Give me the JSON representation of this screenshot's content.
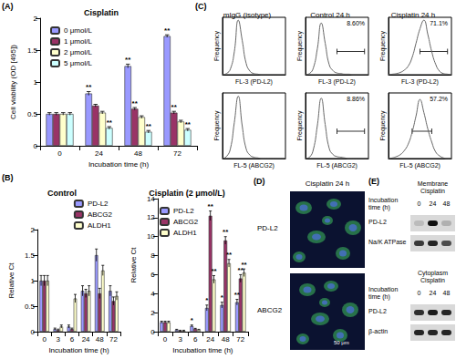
{
  "panel_labels": [
    "(A)",
    "(B)",
    "(C)",
    "(D)",
    "(E)"
  ],
  "chart_data": [
    {
      "type": "bar",
      "title": "Cisplatin",
      "x_label": "Incubation time (h)",
      "y_label": "Cell viability (OD [495])",
      "categories": [
        "0",
        "24",
        "48",
        "72"
      ],
      "ylim": [
        0,
        2
      ],
      "yticks": [
        0,
        0.5,
        1,
        1.5,
        2
      ],
      "grid": false,
      "legend": "top-left",
      "series": [
        {
          "name": "0 μmol/L",
          "color": "#9999ff",
          "values": [
            0.5,
            0.82,
            1.25,
            1.72
          ],
          "errors": [
            0.02,
            0.03,
            0.03,
            0.02
          ],
          "significance": [
            null,
            "**",
            "**",
            "**"
          ]
        },
        {
          "name": "1 μmol/L",
          "color": "#993366",
          "values": [
            0.5,
            0.63,
            0.58,
            0.52
          ],
          "errors": [
            0.02,
            0.02,
            0.02,
            0.02
          ],
          "significance": [
            null,
            null,
            "**",
            "**"
          ]
        },
        {
          "name": "2 μmol/L",
          "color": "#ffffcc",
          "values": [
            0.5,
            0.52,
            0.45,
            0.38
          ],
          "errors": [
            0.02,
            0.02,
            0.02,
            0.02
          ],
          "significance": [
            null,
            null,
            null,
            null
          ]
        },
        {
          "name": "5 μmol/L",
          "color": "#ccffff",
          "values": [
            0.5,
            0.28,
            0.22,
            0.25
          ],
          "errors": [
            0.02,
            0.02,
            0.02,
            0.02
          ],
          "significance": [
            null,
            "**",
            "**",
            "**"
          ]
        }
      ]
    },
    {
      "type": "bar",
      "title": "Control",
      "x_label": "Incubation time (h)",
      "y_label": "Relative Ct",
      "categories": [
        "0",
        "3",
        "6",
        "24",
        "48",
        "72"
      ],
      "ylim": [
        0,
        2
      ],
      "yticks": [
        0,
        0.5,
        1,
        1.5,
        2
      ],
      "grid": false,
      "legend": "top-right",
      "series": [
        {
          "name": "PD-L2",
          "color": "#9999ff",
          "values": [
            1,
            0.05,
            0.1,
            0.8,
            1.5,
            0.8
          ],
          "errors": [
            0.1,
            0.02,
            0.03,
            0.1,
            0.12,
            0.1
          ]
        },
        {
          "name": "ABCG2",
          "color": "#993366",
          "values": [
            1,
            0.03,
            0.05,
            0.75,
            0.75,
            0.6
          ],
          "errors": [
            0.1,
            0.02,
            0.02,
            0.08,
            0.1,
            0.08
          ]
        },
        {
          "name": "ALDH1",
          "color": "#ffffcc",
          "values": [
            1,
            0.1,
            0.65,
            0.8,
            1.2,
            0.7
          ],
          "errors": [
            0.1,
            0.03,
            0.08,
            0.1,
            0.1,
            0.08
          ]
        }
      ]
    },
    {
      "type": "bar",
      "title": "Cisplatin (2 μmol/L)",
      "x_label": "Incubation time (h)",
      "y_label": "Relative Ct",
      "categories": [
        "0",
        "3",
        "6",
        "24",
        "48",
        "72"
      ],
      "ylim": [
        0,
        14
      ],
      "yticks": [
        0,
        2,
        4,
        6,
        8,
        10,
        12,
        14
      ],
      "grid": false,
      "legend": "top-left",
      "series": [
        {
          "name": "PD-L2",
          "color": "#9999ff",
          "values": [
            1,
            0.2,
            0.6,
            2.5,
            2.8,
            3.1
          ],
          "errors": [
            0.1,
            0.05,
            0.1,
            0.3,
            0.3,
            0.3
          ],
          "significance": [
            null,
            null,
            "*",
            "*",
            "*",
            "**"
          ]
        },
        {
          "name": "ABCG2",
          "color": "#993366",
          "values": [
            1,
            0.1,
            0.3,
            12.2,
            9.6,
            5.6
          ],
          "errors": [
            0.1,
            0.05,
            0.05,
            0.5,
            0.4,
            0.4
          ],
          "significance": [
            null,
            null,
            null,
            "**",
            "**",
            "**"
          ]
        },
        {
          "name": "ALDH1",
          "color": "#ffffcc",
          "values": [
            1,
            0.1,
            0.2,
            5.5,
            7.2,
            6.2
          ],
          "errors": [
            0.1,
            0.05,
            0.05,
            0.4,
            0.4,
            0.4
          ],
          "significance": [
            null,
            null,
            null,
            "**",
            "**",
            "**"
          ]
        }
      ]
    },
    {
      "type": "line",
      "title": "mIgG (isotype)",
      "x_label": "FL-3 (PD-L2)",
      "y_label": "Frequency",
      "tick_labels": false,
      "color": "#666666",
      "xlim": [
        0,
        16
      ],
      "ylim": [
        0,
        100
      ],
      "x": [
        0,
        1,
        2,
        3,
        4,
        5,
        6,
        7,
        8,
        9,
        10,
        11,
        12,
        13,
        14,
        15,
        16
      ],
      "values": [
        0,
        2,
        10,
        40,
        95,
        60,
        20,
        6,
        2,
        1,
        0,
        0,
        0,
        0,
        0,
        0,
        0
      ]
    },
    {
      "type": "line",
      "title": "Control 24 h",
      "x_label": "FL-3 (PD-L2)",
      "y_label": "Frequency",
      "tick_labels": false,
      "color": "#666666",
      "xlim": [
        0,
        16
      ],
      "ylim": [
        0,
        100
      ],
      "x": [
        0,
        1,
        2,
        3,
        4,
        5,
        6,
        7,
        8,
        9,
        10,
        11,
        12,
        13,
        14,
        15,
        16
      ],
      "values": [
        0,
        2,
        12,
        45,
        90,
        55,
        18,
        7,
        3,
        2,
        1,
        1,
        0,
        0,
        0,
        0,
        0
      ],
      "gate": [
        8,
        15
      ],
      "annotation": "8.60%"
    },
    {
      "type": "line",
      "title": "Cisplatin 24 h",
      "x_label": "FL-3 (PD-L2)",
      "y_label": "Frequency",
      "tick_labels": false,
      "color": "#666666",
      "xlim": [
        0,
        16
      ],
      "ylim": [
        0,
        100
      ],
      "x": [
        0,
        1,
        2,
        3,
        4,
        5,
        6,
        7,
        8,
        9,
        10,
        11,
        12,
        13,
        14,
        15,
        16
      ],
      "values": [
        0,
        1,
        2,
        4,
        8,
        15,
        30,
        55,
        80,
        95,
        70,
        40,
        18,
        6,
        2,
        1,
        0
      ],
      "gate": [
        8,
        15
      ],
      "annotation": "71.1%"
    },
    {
      "type": "line",
      "x_label": "FL-5 (ABCG2)",
      "y_label": "Frequency",
      "tick_labels": false,
      "color": "#666666",
      "xlim": [
        0,
        16
      ],
      "ylim": [
        0,
        100
      ],
      "x": [
        0,
        1,
        2,
        3,
        4,
        5,
        6,
        7,
        8,
        9,
        10,
        11,
        12,
        13,
        14,
        15,
        16
      ],
      "values": [
        0,
        3,
        15,
        55,
        95,
        50,
        15,
        5,
        2,
        1,
        0,
        0,
        0,
        0,
        0,
        0,
        0
      ]
    },
    {
      "type": "line",
      "x_label": "FL-5 (ABCG2)",
      "y_label": "Frequency",
      "tick_labels": false,
      "color": "#666666",
      "xlim": [
        0,
        16
      ],
      "ylim": [
        0,
        100
      ],
      "x": [
        0,
        1,
        2,
        3,
        4,
        5,
        6,
        7,
        8,
        9,
        10,
        11,
        12,
        13,
        14,
        15,
        16
      ],
      "values": [
        0,
        2,
        14,
        50,
        92,
        52,
        16,
        6,
        3,
        2,
        1,
        0,
        0,
        0,
        0,
        0,
        0
      ],
      "gate": [
        8,
        15
      ],
      "annotation": "8.86%"
    },
    {
      "type": "line",
      "x_label": "FL-5 (ABCG2)",
      "y_label": "Frequency",
      "tick_labels": false,
      "color": "#666666",
      "xlim": [
        0,
        16
      ],
      "ylim": [
        0,
        100
      ],
      "x": [
        0,
        1,
        2,
        3,
        4,
        5,
        6,
        7,
        8,
        9,
        10,
        11,
        12,
        13,
        14,
        15,
        16
      ],
      "values": [
        0,
        1,
        3,
        6,
        12,
        22,
        40,
        65,
        90,
        70,
        45,
        25,
        10,
        4,
        1,
        0,
        0
      ],
      "gate": [
        6,
        11
      ],
      "annotation": "57.2%"
    }
  ],
  "images": {
    "title": "Cisplatin 24 h",
    "rows": [
      "PD-L2",
      "ABCG2"
    ],
    "scale_bar": "50 μm"
  },
  "blots": [
    {
      "title": [
        "Membrane",
        "Cisplatin"
      ],
      "time_label": "Incubation time (h)",
      "times": [
        0,
        24,
        48
      ],
      "rows": [
        {
          "label": "PD-L2",
          "bands": [
            0.15,
            1,
            0.2
          ]
        },
        {
          "label": "Na/K ATPase",
          "bands": [
            0.8,
            0.9,
            0.7
          ]
        }
      ]
    },
    {
      "title": [
        "Cytoplasm",
        "Cisplatin"
      ],
      "time_label": "Incubation time (h)",
      "times": [
        0,
        24,
        48
      ],
      "rows": [
        {
          "label": "PD-L2",
          "bands": [
            0.85,
            0.95,
            0.9
          ]
        },
        {
          "label": "β-actin",
          "bands": [
            0.9,
            0.9,
            0.9
          ]
        }
      ]
    }
  ]
}
